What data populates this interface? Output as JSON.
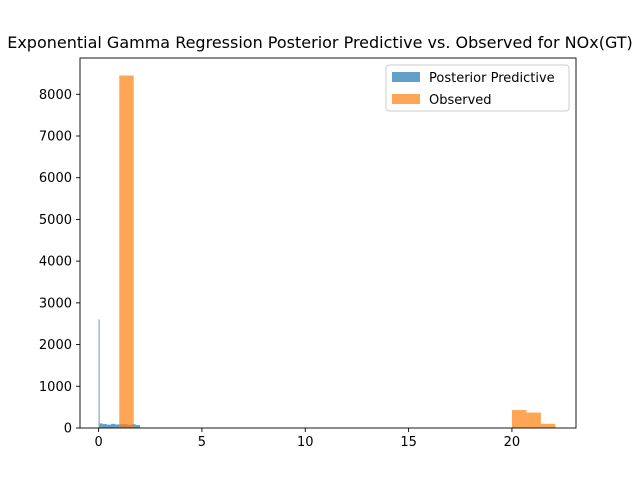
{
  "chart_data": {
    "type": "bar",
    "title": "Exponential Gamma Regression Posterior Predictive vs. Observed for NOx(GT)",
    "xlabel": "",
    "ylabel": "",
    "xlim": [
      -0.9,
      23.1
    ],
    "ylim": [
      0,
      8870
    ],
    "xticks": [
      0,
      5,
      10,
      15,
      20
    ],
    "yticks": [
      0,
      1000,
      2000,
      3000,
      4000,
      5000,
      6000,
      7000,
      8000
    ],
    "grid": false,
    "legend_position": "top-right",
    "series": [
      {
        "name": "Posterior Predictive",
        "color": "#1f77b4",
        "opacity": 0.7,
        "bins": [
          {
            "x0": 0.0,
            "x1": 0.05,
            "count": 2600
          },
          {
            "x0": 0.05,
            "x1": 0.2,
            "count": 110
          },
          {
            "x0": 0.2,
            "x1": 0.4,
            "count": 95
          },
          {
            "x0": 0.4,
            "x1": 0.6,
            "count": 80
          },
          {
            "x0": 0.6,
            "x1": 0.8,
            "count": 100
          },
          {
            "x0": 0.8,
            "x1": 1.0,
            "count": 85
          },
          {
            "x0": 1.0,
            "x1": 1.2,
            "count": 90
          },
          {
            "x0": 1.2,
            "x1": 1.4,
            "count": 95
          },
          {
            "x0": 1.4,
            "x1": 1.6,
            "count": 75
          },
          {
            "x0": 1.6,
            "x1": 1.8,
            "count": 90
          },
          {
            "x0": 1.8,
            "x1": 2.0,
            "count": 70
          }
        ]
      },
      {
        "name": "Observed",
        "color": "#ff7f0e",
        "opacity": 0.7,
        "bins": [
          {
            "x0": 1.0,
            "x1": 1.7,
            "count": 8450
          },
          {
            "x0": 20.0,
            "x1": 20.7,
            "count": 430
          },
          {
            "x0": 20.7,
            "x1": 21.4,
            "count": 370
          },
          {
            "x0": 21.4,
            "x1": 22.1,
            "count": 100
          }
        ]
      }
    ]
  }
}
